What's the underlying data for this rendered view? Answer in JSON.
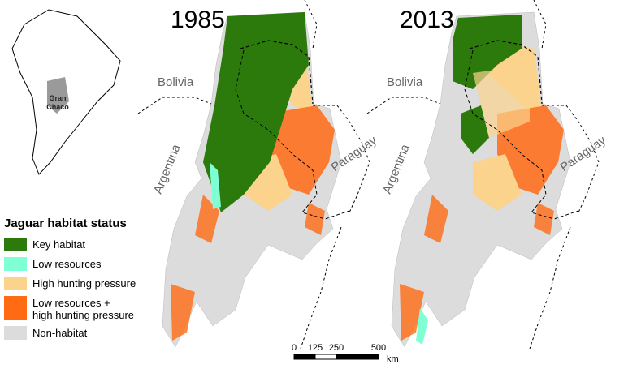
{
  "inset": {
    "label_lines": [
      "Gran",
      "Chaco"
    ]
  },
  "maps": [
    {
      "year": "1985",
      "country_labels": {
        "bolivia": "Bolivia",
        "argentina": "Argentina",
        "paraguay": "Paraguay"
      }
    },
    {
      "year": "2013",
      "country_labels": {
        "bolivia": "Bolivia",
        "argentina": "Argentina",
        "paraguay": "Paraguay"
      }
    }
  ],
  "legend": {
    "title": "Jaguar habitat status",
    "items": [
      {
        "lines": [
          "Key habitat"
        ],
        "color": "#2b7a0b"
      },
      {
        "lines": [
          "Low resources"
        ],
        "color": "#7fffd4"
      },
      {
        "lines": [
          "High hunting pressure"
        ],
        "color": "#fbd38d"
      },
      {
        "lines": [
          "Low resources +",
          "high hunting pressure"
        ],
        "color": "#ff6a13"
      },
      {
        "lines": [
          "Non-habitat"
        ],
        "color": "#dcdcdc"
      }
    ]
  },
  "scale_bar": {
    "ticks": [
      0,
      125,
      250,
      500
    ],
    "unit": "km"
  }
}
